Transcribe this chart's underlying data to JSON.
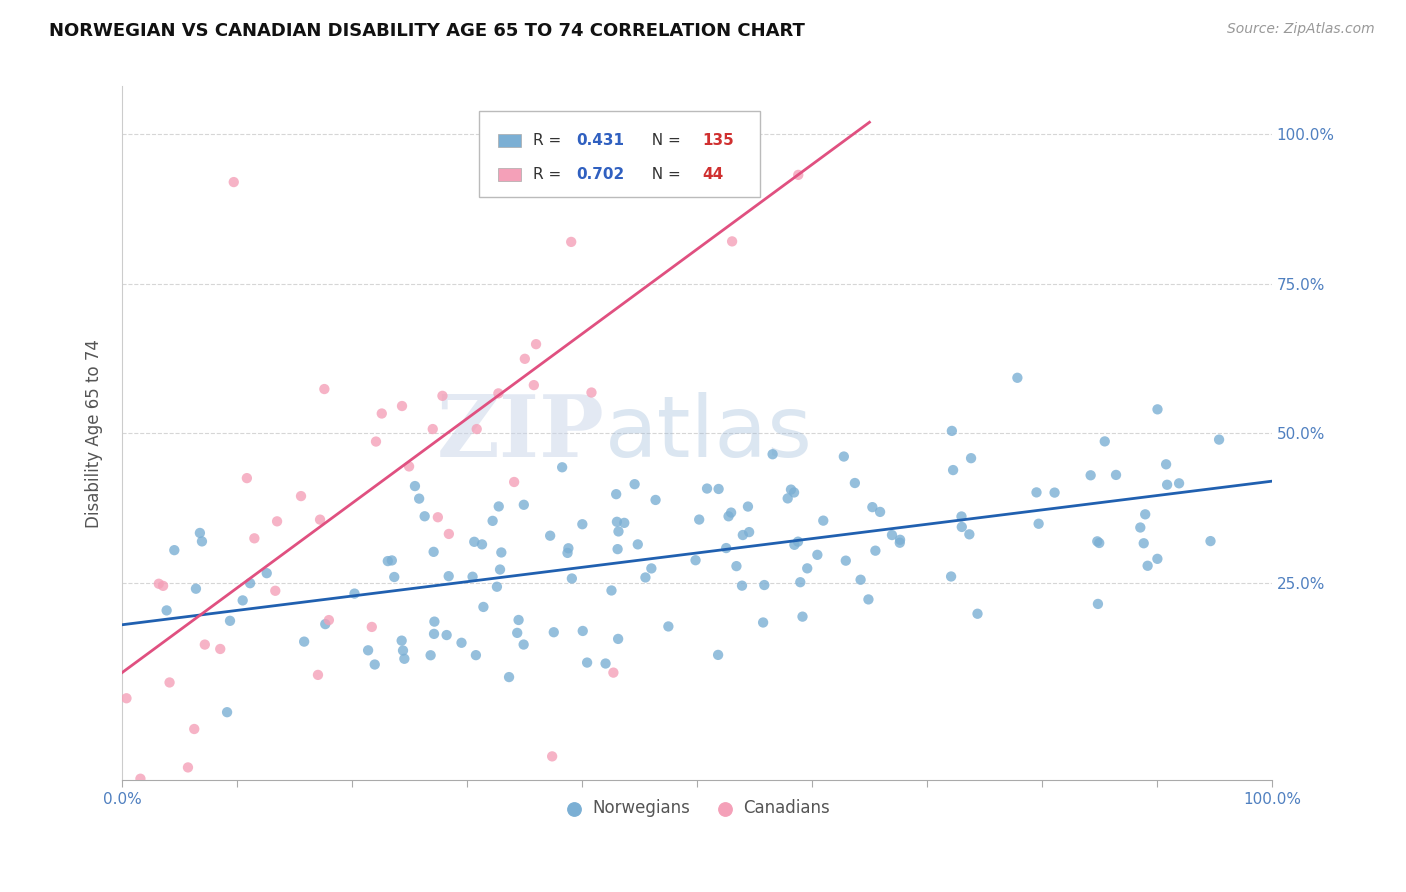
{
  "title": "NORWEGIAN VS CANADIAN DISABILITY AGE 65 TO 74 CORRELATION CHART",
  "source_text": "Source: ZipAtlas.com",
  "ylabel": "Disability Age 65 to 74",
  "legend_labels": [
    "Norwegians",
    "Canadians"
  ],
  "norwegian_R": 0.431,
  "norwegian_N": 135,
  "canadian_R": 0.702,
  "canadian_N": 44,
  "color_norwegian": "#7bafd4",
  "color_canadian": "#f4a0b8",
  "color_norwegian_line": "#2060b0",
  "color_canadian_line": "#e05080",
  "watermark_zip": "ZIP",
  "watermark_atlas": "atlas",
  "xlim": [
    0.0,
    1.0
  ],
  "ylim": [
    -0.08,
    1.08
  ],
  "ytick_positions": [
    0.25,
    0.5,
    0.75,
    1.0
  ],
  "ytick_labels": [
    "25.0%",
    "50.0%",
    "75.0%",
    "100.0%"
  ],
  "seed": 7,
  "nor_line_x0": 0.0,
  "nor_line_y0": 0.18,
  "nor_line_x1": 1.0,
  "nor_line_y1": 0.42,
  "can_line_x0": 0.0,
  "can_line_y0": 0.1,
  "can_line_x1": 0.65,
  "can_line_y1": 1.02
}
